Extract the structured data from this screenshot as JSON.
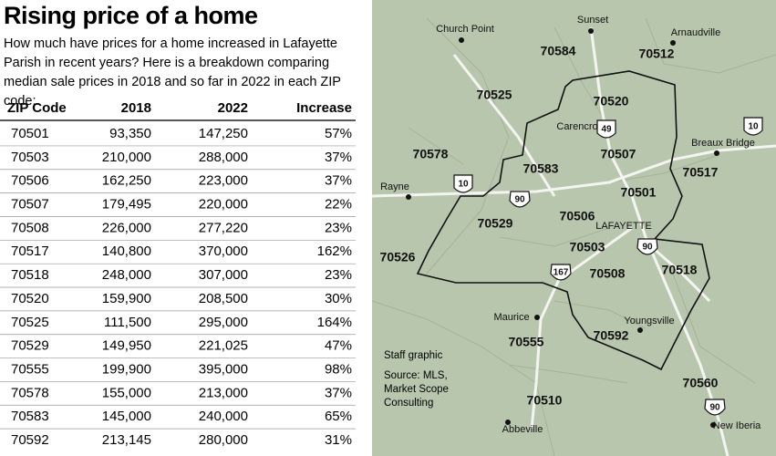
{
  "header": {
    "title": "Rising price of a home",
    "description": "How much have prices for a home increased in Lafayette Parish in recent years? Here is a breakdown comparing median sale prices in 2018 and so far in 2022 in each ZIP code:"
  },
  "table": {
    "columns": [
      "ZIP Code",
      "2018",
      "2022",
      "Increase"
    ],
    "rows": [
      [
        "70501",
        "93,350",
        "147,250",
        "57%"
      ],
      [
        "70503",
        "210,000",
        "288,000",
        "37%"
      ],
      [
        "70506",
        "162,250",
        "223,000",
        "37%"
      ],
      [
        "70507",
        "179,495",
        "220,000",
        "22%"
      ],
      [
        "70508",
        "226,000",
        "277,220",
        "23%"
      ],
      [
        "70517",
        "140,800",
        "370,000",
        "162%"
      ],
      [
        "70518",
        "248,000",
        "307,000",
        "23%"
      ],
      [
        "70520",
        "159,900",
        "208,500",
        "30%"
      ],
      [
        "70525",
        "111,500",
        "295,000",
        "164%"
      ],
      [
        "70529",
        "149,950",
        "221,025",
        "47%"
      ],
      [
        "70555",
        "199,900",
        "395,000",
        "98%"
      ],
      [
        "70578",
        "155,000",
        "213,000",
        "37%"
      ],
      [
        "70583",
        "145,000",
        "240,000",
        "65%"
      ],
      [
        "70592",
        "213,145",
        "280,000",
        "31%"
      ]
    ]
  },
  "map": {
    "zips": [
      "70584",
      "70512",
      "70525",
      "70520",
      "70578",
      "70583",
      "70507",
      "70517",
      "70501",
      "70506",
      "70529",
      "70503",
      "70508",
      "70518",
      "70526",
      "70555",
      "70592",
      "70560",
      "70510"
    ],
    "towns": [
      "Church Point",
      "Sunset",
      "Arnaudville",
      "Carencro",
      "Breaux Bridge",
      "Rayne",
      "LAFAYETTE",
      "Maurice",
      "Youngsville",
      "Abbeville",
      "New Iberia"
    ],
    "shields": [
      "49",
      "10",
      "10",
      "90",
      "90",
      "167",
      "90"
    ],
    "credit": "Staff graphic",
    "source": "Source: MLS, Market Scope Consulting"
  }
}
